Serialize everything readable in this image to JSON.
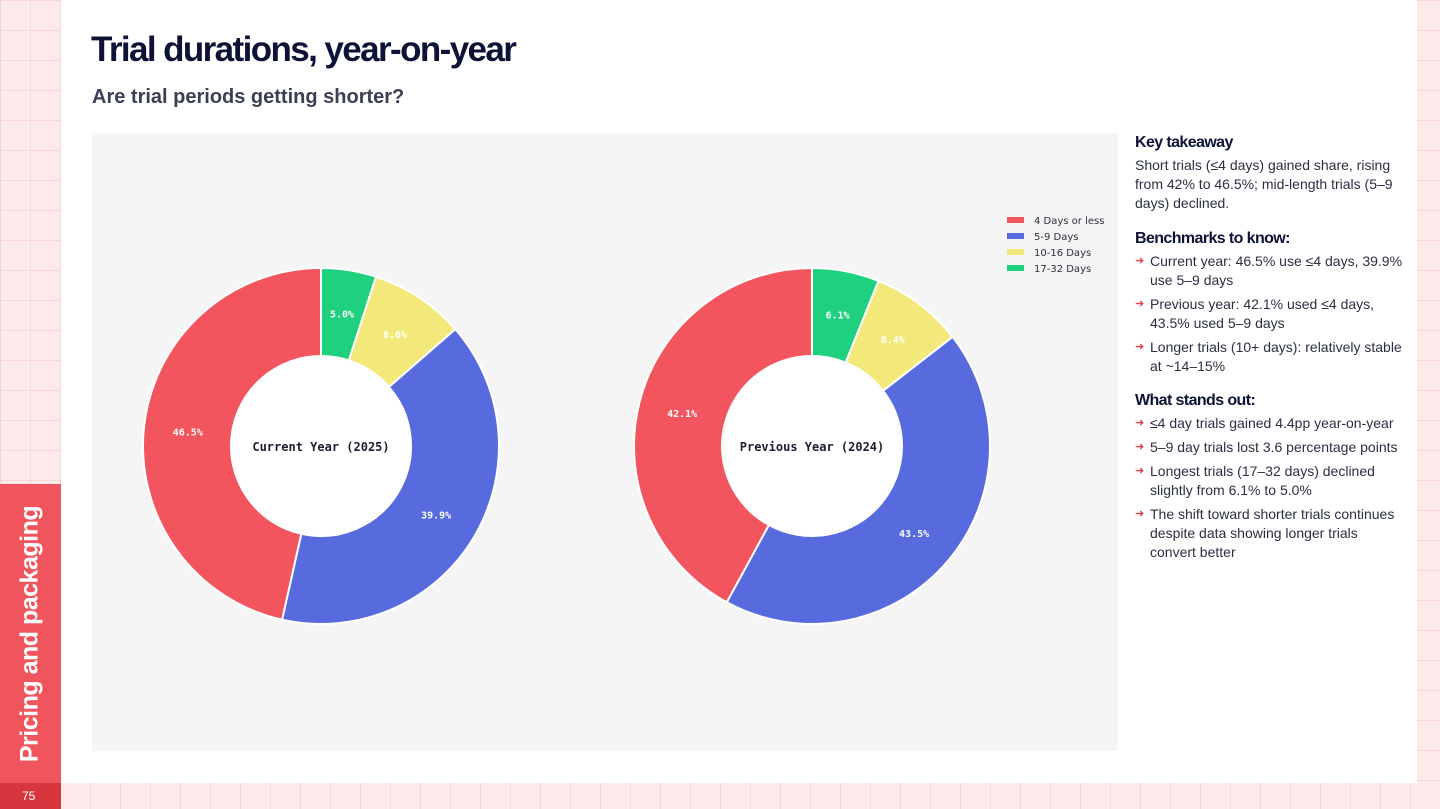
{
  "page": {
    "title": "Trial durations, year-on-year",
    "subtitle": "Are trial periods getting shorter?",
    "section_label": "Pricing and packaging",
    "page_number": "75"
  },
  "sidebar": {
    "key_takeaway": {
      "heading": "Key takeaway",
      "text": "Short trials (≤4 days) gained share, rising from 42% to 46.5%; mid-length trials (5–9 days) declined."
    },
    "benchmarks": {
      "heading": "Benchmarks to know:",
      "items": [
        "Current year: 46.5% use ≤4 days, 39.9% use 5–9 days",
        "Previous year: 42.1% used ≤4 days, 43.5% used 5–9 days",
        "Longer trials (10+ days): relatively stable at ~14–15%"
      ]
    },
    "stands_out": {
      "heading": "What stands out:",
      "items": [
        "≤4 day trials gained 4.4pp year-on-year",
        "5–9 day trials lost 3.6 percentage points",
        "Longest trials (17–32 days) declined slightly from 6.1% to 5.0%",
        "The shift toward shorter trials continues despite data showing longer trials convert better"
      ]
    }
  },
  "colors": {
    "accent": "#f0555e",
    "segments": [
      "#f2555e",
      "#586bde",
      "#f3e97a",
      "#1fd07f"
    ]
  },
  "chart_data": [
    {
      "type": "pie",
      "variant": "donut",
      "center_label": "Current Year (2025)",
      "categories": [
        "4 Days or less",
        "5-9 Days",
        "10-16 Days",
        "17-32 Days"
      ],
      "values": [
        46.5,
        39.9,
        8.6,
        5.0
      ],
      "labels": [
        "46.5%",
        "39.9%",
        "8.6%",
        "5.0%"
      ],
      "legend": "top-right"
    },
    {
      "type": "pie",
      "variant": "donut",
      "center_label": "Previous Year (2024)",
      "categories": [
        "4 Days or less",
        "5-9 Days",
        "10-16 Days",
        "17-32 Days"
      ],
      "values": [
        42.1,
        43.5,
        8.4,
        6.1
      ],
      "labels": [
        "42.1%",
        "43.5%",
        "8.4%",
        "6.1%"
      ]
    }
  ]
}
